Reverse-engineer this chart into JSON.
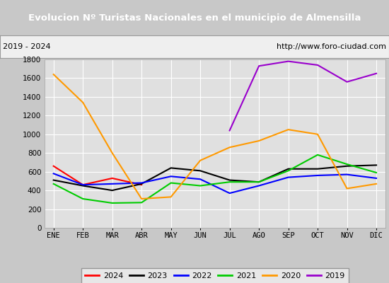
{
  "title": "Evolucion Nº Turistas Nacionales en el municipio de Almensilla",
  "subtitle_left": "2019 - 2024",
  "subtitle_right": "http://www.foro-ciudad.com",
  "title_bg_color": "#4a7abf",
  "title_text_color": "#ffffff",
  "plot_bg_color": "#e0e0e0",
  "outer_bg_color": "#c8c8c8",
  "months": [
    "ENE",
    "FEB",
    "MAR",
    "ABR",
    "MAY",
    "JUN",
    "JUL",
    "AGO",
    "SEP",
    "OCT",
    "NOV",
    "DIC"
  ],
  "series": {
    "2024": {
      "color": "#ff0000",
      "values": [
        660,
        460,
        530,
        460,
        null,
        null,
        null,
        null,
        null,
        null,
        null,
        null
      ]
    },
    "2023": {
      "color": "#000000",
      "values": [
        510,
        450,
        400,
        470,
        640,
        610,
        510,
        490,
        630,
        630,
        660,
        670
      ]
    },
    "2022": {
      "color": "#0000ff",
      "values": [
        580,
        460,
        470,
        480,
        550,
        520,
        370,
        450,
        540,
        560,
        570,
        530
      ]
    },
    "2021": {
      "color": "#00cc00",
      "values": [
        470,
        310,
        265,
        270,
        480,
        450,
        490,
        490,
        610,
        780,
        680,
        590
      ]
    },
    "2020": {
      "color": "#ff9900",
      "values": [
        1640,
        1340,
        800,
        310,
        330,
        720,
        860,
        930,
        1050,
        1000,
        420,
        470
      ]
    },
    "2019": {
      "color": "#9900cc",
      "values": [
        null,
        null,
        null,
        null,
        null,
        null,
        1040,
        1730,
        1780,
        1740,
        1560,
        1650
      ]
    }
  },
  "ylim": [
    0,
    1800
  ],
  "yticks": [
    0,
    200,
    400,
    600,
    800,
    1000,
    1200,
    1400,
    1600,
    1800
  ],
  "grid_color": "#ffffff",
  "legend_order": [
    "2024",
    "2023",
    "2022",
    "2021",
    "2020",
    "2019"
  ]
}
